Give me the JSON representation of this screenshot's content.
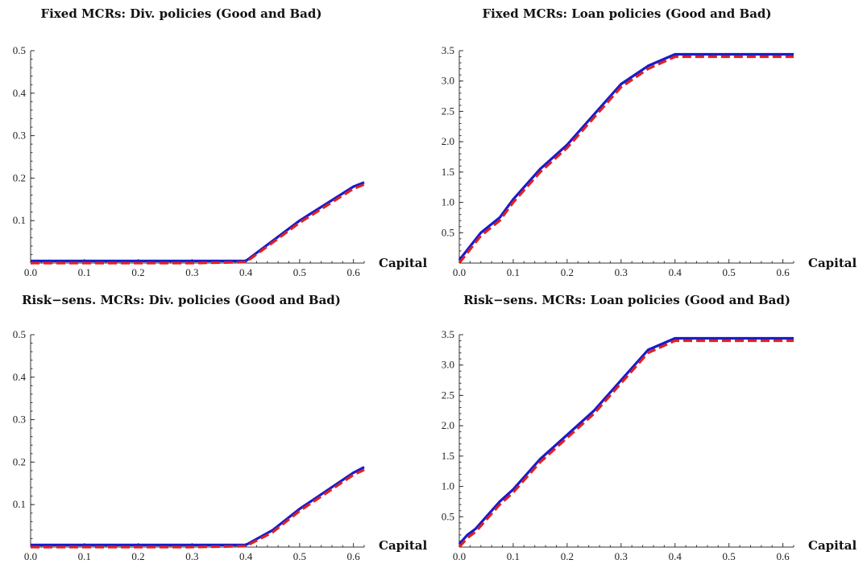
{
  "chart_data": [
    {
      "type": "line",
      "title": "Fixed MCRs: Div. policies (Good and Bad)",
      "xlabel": "Capital",
      "ylabel": "",
      "xlim": [
        0,
        0.62
      ],
      "ylim": [
        0,
        0.5
      ],
      "xticks": [
        "0.0",
        "0.1",
        "0.2",
        "0.3",
        "0.4",
        "0.5",
        "0.6"
      ],
      "yticks": [
        "0.1",
        "0.2",
        "0.3",
        "0.4",
        "0.5"
      ],
      "series": [
        {
          "color": "#1a1acc",
          "style": "solid",
          "x": [
            0,
            0.1,
            0.2,
            0.3,
            0.4,
            0.5,
            0.6,
            0.62
          ],
          "y": [
            0.005,
            0.005,
            0.005,
            0.005,
            0.005,
            0.1,
            0.18,
            0.19
          ]
        },
        {
          "color": "#dd2222",
          "style": "dashed",
          "x": [
            0,
            0.1,
            0.2,
            0.3,
            0.4,
            0.5,
            0.6,
            0.62
          ],
          "y": [
            0.0,
            0.0,
            0.0,
            0.0,
            0.002,
            0.095,
            0.175,
            0.185
          ]
        }
      ]
    },
    {
      "type": "line",
      "title": "Fixed MCRs: Loan policies (Good and Bad)",
      "xlabel": "Capital",
      "ylabel": "",
      "xlim": [
        0,
        0.62
      ],
      "ylim": [
        0,
        3.5
      ],
      "xticks": [
        "0.0",
        "0.1",
        "0.2",
        "0.3",
        "0.4",
        "0.5",
        "0.6"
      ],
      "yticks": [
        "0.5",
        "1.0",
        "1.5",
        "2.0",
        "2.5",
        "3.0",
        "3.5"
      ],
      "series": [
        {
          "color": "#1a1acc",
          "style": "solid",
          "x": [
            0,
            0.04,
            0.075,
            0.1,
            0.15,
            0.2,
            0.25,
            0.3,
            0.35,
            0.4,
            0.5,
            0.62
          ],
          "y": [
            0.05,
            0.5,
            0.75,
            1.05,
            1.55,
            1.95,
            2.45,
            2.95,
            3.25,
            3.44,
            3.44,
            3.44
          ]
        },
        {
          "color": "#dd2222",
          "style": "dashed",
          "x": [
            0,
            0.04,
            0.075,
            0.1,
            0.15,
            0.2,
            0.25,
            0.3,
            0.35,
            0.4,
            0.5,
            0.62
          ],
          "y": [
            0.0,
            0.45,
            0.7,
            1.0,
            1.5,
            1.9,
            2.4,
            2.9,
            3.2,
            3.4,
            3.4,
            3.4
          ]
        }
      ]
    },
    {
      "type": "line",
      "title": "Risk−sens. MCRs: Div. policies (Good and Bad)",
      "xlabel": "Capital",
      "ylabel": "",
      "xlim": [
        0,
        0.62
      ],
      "ylim": [
        0,
        0.5
      ],
      "xticks": [
        "0.0",
        "0.1",
        "0.2",
        "0.3",
        "0.4",
        "0.5",
        "0.6"
      ],
      "yticks": [
        "0.1",
        "0.2",
        "0.3",
        "0.4",
        "0.5"
      ],
      "series": [
        {
          "color": "#1a1acc",
          "style": "solid",
          "x": [
            0,
            0.1,
            0.2,
            0.3,
            0.4,
            0.45,
            0.5,
            0.6,
            0.62
          ],
          "y": [
            0.005,
            0.005,
            0.005,
            0.005,
            0.005,
            0.04,
            0.09,
            0.175,
            0.188
          ]
        },
        {
          "color": "#dd2222",
          "style": "dashed",
          "x": [
            0,
            0.1,
            0.2,
            0.3,
            0.4,
            0.45,
            0.5,
            0.6,
            0.62
          ],
          "y": [
            0.0,
            0.0,
            0.0,
            0.0,
            0.002,
            0.035,
            0.085,
            0.17,
            0.182
          ]
        }
      ]
    },
    {
      "type": "line",
      "title": "Risk−sens. MCRs: Loan policies (Good and Bad)",
      "xlabel": "Capital",
      "ylabel": "",
      "xlim": [
        0,
        0.62
      ],
      "ylim": [
        0,
        3.5
      ],
      "xticks": [
        "0.0",
        "0.1",
        "0.2",
        "0.3",
        "0.4",
        "0.5",
        "0.6"
      ],
      "yticks": [
        "0.5",
        "1.0",
        "1.5",
        "2.0",
        "2.5",
        "3.0",
        "3.5"
      ],
      "series": [
        {
          "color": "#1a1acc",
          "style": "solid",
          "x": [
            0,
            0.015,
            0.03,
            0.075,
            0.1,
            0.15,
            0.2,
            0.25,
            0.3,
            0.35,
            0.4,
            0.5,
            0.62
          ],
          "y": [
            0.05,
            0.2,
            0.3,
            0.75,
            0.95,
            1.45,
            1.85,
            2.25,
            2.75,
            3.25,
            3.44,
            3.44,
            3.44
          ]
        },
        {
          "color": "#dd2222",
          "style": "dashed",
          "x": [
            0,
            0.015,
            0.03,
            0.075,
            0.1,
            0.15,
            0.2,
            0.25,
            0.3,
            0.35,
            0.4,
            0.5,
            0.62
          ],
          "y": [
            0.0,
            0.15,
            0.25,
            0.7,
            0.9,
            1.4,
            1.8,
            2.2,
            2.7,
            3.2,
            3.4,
            3.4,
            3.4
          ]
        }
      ]
    }
  ]
}
